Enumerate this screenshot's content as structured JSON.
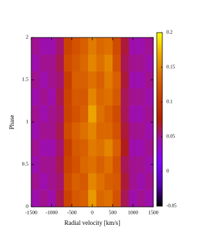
{
  "chart_data": {
    "type": "heatmap",
    "xlabel": "Radial velocity [km/s]",
    "ylabel": "Phase",
    "x_bins": [
      -1500,
      -1300,
      -1100,
      -900,
      -700,
      -500,
      -300,
      -100,
      100,
      300,
      500,
      700,
      900,
      1100,
      1300,
      1500
    ],
    "y_bins": [
      0,
      0.2,
      0.4,
      0.6,
      0.8,
      1,
      1.2,
      1.4,
      1.6,
      1.8,
      2
    ],
    "z": [
      [
        0.045,
        0.05,
        0.045,
        0.06,
        0.11,
        0.125,
        0.13,
        0.16,
        0.135,
        0.14,
        0.12,
        0.06,
        0.045,
        0.05,
        0.045
      ],
      [
        0.05,
        0.045,
        0.05,
        0.055,
        0.115,
        0.13,
        0.125,
        0.15,
        0.14,
        0.13,
        0.125,
        0.065,
        0.05,
        0.045,
        0.05
      ],
      [
        0.045,
        0.05,
        0.05,
        0.06,
        0.11,
        0.12,
        0.135,
        0.14,
        0.13,
        0.14,
        0.12,
        0.06,
        0.05,
        0.05,
        0.045
      ],
      [
        0.05,
        0.045,
        0.045,
        0.055,
        0.105,
        0.125,
        0.13,
        0.145,
        0.14,
        0.15,
        0.13,
        0.07,
        0.045,
        0.045,
        0.05
      ],
      [
        0.045,
        0.05,
        0.05,
        0.06,
        0.115,
        0.13,
        0.14,
        0.15,
        0.135,
        0.135,
        0.12,
        0.065,
        0.05,
        0.05,
        0.045
      ],
      [
        0.05,
        0.045,
        0.05,
        0.055,
        0.11,
        0.12,
        0.13,
        0.165,
        0.14,
        0.13,
        0.115,
        0.06,
        0.045,
        0.045,
        0.05
      ],
      [
        0.045,
        0.05,
        0.045,
        0.06,
        0.11,
        0.125,
        0.125,
        0.15,
        0.135,
        0.14,
        0.125,
        0.06,
        0.05,
        0.05,
        0.045
      ],
      [
        0.05,
        0.045,
        0.05,
        0.055,
        0.105,
        0.13,
        0.13,
        0.14,
        0.13,
        0.145,
        0.13,
        0.065,
        0.045,
        0.045,
        0.05
      ],
      [
        0.045,
        0.05,
        0.05,
        0.06,
        0.115,
        0.125,
        0.135,
        0.15,
        0.14,
        0.15,
        0.12,
        0.06,
        0.05,
        0.05,
        0.045
      ],
      [
        0.05,
        0.045,
        0.045,
        0.055,
        0.11,
        0.12,
        0.13,
        0.145,
        0.135,
        0.14,
        0.115,
        0.065,
        0.045,
        0.045,
        0.05
      ]
    ],
    "xlim": [
      -1500,
      1500
    ],
    "xticks": [
      -1500,
      -1000,
      -500,
      0,
      500,
      1000,
      1500
    ],
    "ylim": [
      0,
      2
    ],
    "yticks": [
      0,
      0.5,
      1,
      1.5,
      2
    ],
    "zlim": [
      -0.05,
      0.2
    ],
    "zticks": [
      -0.05,
      0,
      0.05,
      0.1,
      0.15,
      0.2
    ],
    "colormap": [
      "#000000",
      "#5a00b4",
      "#8004ff",
      "#9c0eb4",
      "#b42000",
      "#c93e00",
      "#dd6b00",
      "#eeab00",
      "#ffff00"
    ]
  }
}
